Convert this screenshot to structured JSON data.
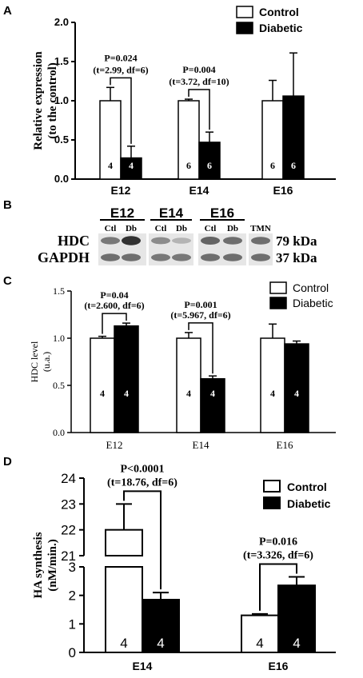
{
  "chart_data": [
    {
      "panel": "A",
      "type": "bar",
      "ylabel": [
        "Relative expression",
        "(to the control)"
      ],
      "ylim": [
        0,
        2.0
      ],
      "yticks": [
        "0.0",
        "0.5",
        "1.0",
        "1.5",
        "2.0"
      ],
      "categories": [
        "E12",
        "E14",
        "E16"
      ],
      "legend": [
        "Control",
        "Diabetic"
      ],
      "series": [
        {
          "name": "Control",
          "color": "#ffffff",
          "values": [
            1.0,
            1.0,
            1.0
          ],
          "errors": [
            0.17,
            0.02,
            0.26
          ],
          "n": [
            "4",
            "6",
            "6"
          ]
        },
        {
          "name": "Diabetic",
          "color": "#000000",
          "values": [
            0.27,
            0.47,
            1.06
          ],
          "errors": [
            0.15,
            0.13,
            0.55
          ],
          "n": [
            "4",
            "6",
            "6"
          ]
        }
      ],
      "annotations": [
        {
          "category": "E12",
          "lines": [
            "P=0.024",
            "(t=2.99, df=6)"
          ]
        },
        {
          "category": "E14",
          "lines": [
            "P=0.004",
            "(t=3.72, df=10)"
          ]
        }
      ]
    },
    {
      "panel": "C",
      "type": "bar",
      "ylabel": [
        "HDC level",
        "(u.a.)"
      ],
      "ylim": [
        0,
        1.5
      ],
      "yticks": [
        "0.0",
        "0.5",
        "1.0",
        "1.5"
      ],
      "categories": [
        "E12",
        "E14",
        "E16"
      ],
      "legend": [
        "Control",
        "Diabetic"
      ],
      "series": [
        {
          "name": "Control",
          "color": "#ffffff",
          "values": [
            1.0,
            1.0,
            1.0
          ],
          "errors": [
            0.02,
            0.06,
            0.15
          ],
          "n": [
            "4",
            "4",
            "4"
          ]
        },
        {
          "name": "Diabetic",
          "color": "#000000",
          "values": [
            1.13,
            0.57,
            0.94
          ],
          "errors": [
            0.03,
            0.03,
            0.03
          ],
          "n": [
            "4",
            "4",
            "4"
          ]
        }
      ],
      "annotations": [
        {
          "category": "E12",
          "lines": [
            "P=0.04",
            "(t=2.600, df=6)"
          ]
        },
        {
          "category": "E14",
          "lines": [
            "P=0.001",
            "(t=5.967, df=6)"
          ]
        }
      ]
    },
    {
      "panel": "D",
      "type": "bar",
      "ylabel": [
        "HA synthesis",
        "(nM/min.)"
      ],
      "broken_axis": {
        "lower": [
          0,
          3
        ],
        "upper": [
          21,
          24
        ]
      },
      "yticks_lower": [
        "0",
        "1",
        "2",
        "3"
      ],
      "yticks_upper": [
        "21",
        "22",
        "23",
        "24"
      ],
      "categories": [
        "E14",
        "E16"
      ],
      "legend": [
        "Control",
        "Diabetic"
      ],
      "series": [
        {
          "name": "Control",
          "color": "#ffffff",
          "values": [
            22.0,
            1.3
          ],
          "errors": [
            1.0,
            0.05
          ],
          "n": [
            "4",
            "4"
          ]
        },
        {
          "name": "Diabetic",
          "color": "#000000",
          "values": [
            1.85,
            2.35
          ],
          "errors": [
            0.25,
            0.3
          ],
          "n": [
            "4",
            "4"
          ]
        }
      ],
      "annotations": [
        {
          "category": "E14",
          "lines": [
            "P<0.0001",
            "(t=18.76, df=6)"
          ]
        },
        {
          "category": "E16",
          "lines": [
            "P=0.016",
            "(t=3.326, df=6)"
          ]
        }
      ]
    }
  ],
  "blot": {
    "panel": "B",
    "groups": [
      {
        "label": "E12",
        "lanes": [
          "Ctl",
          "Db"
        ]
      },
      {
        "label": "E14",
        "lanes": [
          "Ctl",
          "Db"
        ]
      },
      {
        "label": "E16",
        "lanes": [
          "Ctl",
          "Db"
        ]
      }
    ],
    "extra_lane": "TMN",
    "rows": [
      {
        "label": "HDC",
        "size": "79 kDa",
        "intensity": [
          0.55,
          0.9,
          0.45,
          0.25,
          0.65,
          0.6,
          0.6
        ]
      },
      {
        "label": "GAPDH",
        "size": "37 kDa",
        "intensity": [
          0.6,
          0.6,
          0.55,
          0.55,
          0.6,
          0.6,
          0.6
        ]
      }
    ]
  },
  "panel_letters": [
    "A",
    "B",
    "C",
    "D"
  ]
}
